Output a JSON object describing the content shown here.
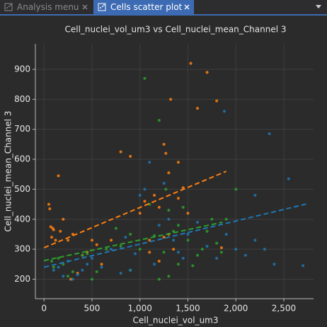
{
  "tabs": [
    {
      "label": "Analysis menu"
    },
    {
      "label": "Cells scatter plot"
    }
  ],
  "chart_data": {
    "type": "scatter",
    "title": "Cell_nuclei_vol_um3 vs Cell_nuclei_mean_Channel 3",
    "x_label": "Cell_nuclei_vol_um3",
    "y_label": "Cell_nuclei_mean_Channel 3",
    "xlim": [
      -90,
      2810
    ],
    "ylim": [
      135,
      985
    ],
    "xticks": [
      0,
      500,
      {
        "value": 1000,
        "label": "1,000"
      },
      {
        "value": 1500,
        "label": "1,500"
      },
      {
        "value": 2000,
        "label": "2,000"
      },
      {
        "value": 2500,
        "label": "2,500"
      }
    ],
    "yticks": [
      200,
      300,
      400,
      500,
      600,
      700,
      800,
      900
    ],
    "grid": true,
    "series": [
      {
        "color": "#ff7f0e",
        "x": [
          50,
          60,
          70,
          80,
          90,
          100,
          120,
          150,
          170,
          200,
          250,
          280,
          300,
          350,
          400,
          450,
          500,
          550,
          600,
          700,
          800,
          900,
          1000,
          1050,
          1100,
          1150,
          1200,
          1250,
          1270,
          1300,
          1320,
          1350,
          1400,
          1450,
          1500,
          1530,
          1600,
          1700,
          1800,
          1850,
          1200,
          1250,
          1300,
          1400,
          1100
        ],
        "y": [
          450,
          435,
          375,
          340,
          370,
          365,
          330,
          545,
          360,
          400,
          330,
          200,
          350,
          220,
          280,
          290,
          330,
          315,
          250,
          330,
          625,
          610,
          420,
          460,
          290,
          480,
          440,
          650,
          620,
          555,
          800,
          300,
          590,
          505,
          420,
          920,
          770,
          890,
          795,
          305,
          260,
          340,
          350,
          470,
          330
        ]
      },
      {
        "color": "#2ca02c",
        "x": [
          80,
          100,
          150,
          200,
          250,
          300,
          400,
          450,
          500,
          550,
          650,
          750,
          800,
          900,
          1000,
          1050,
          1100,
          1150,
          1200,
          1250,
          1270,
          1300,
          1350,
          1400,
          1450,
          1500,
          1550,
          1600,
          1650,
          1700,
          1750,
          1800,
          1850,
          1900,
          2000,
          1200,
          1300,
          900,
          1400
        ],
        "y": [
          260,
          240,
          270,
          250,
          210,
          225,
          280,
          285,
          200,
          225,
          300,
          370,
          310,
          350,
          300,
          870,
          450,
          345,
          730,
          290,
          500,
          430,
          360,
          380,
          440,
          330,
          245,
          280,
          300,
          360,
          400,
          320,
          290,
          400,
          500,
          200,
          210,
          230,
          250
        ]
      },
      {
        "color": "#1f77b4",
        "x": [
          100,
          150,
          200,
          250,
          300,
          350,
          400,
          450,
          500,
          600,
          700,
          800,
          850,
          900,
          950,
          1000,
          1050,
          1100,
          1150,
          1200,
          1250,
          1300,
          1350,
          1400,
          1450,
          1500,
          1600,
          1700,
          1800,
          1880,
          1900,
          2000,
          2100,
          2200,
          2300,
          2350,
          2400,
          2550,
          2700,
          2200
        ],
        "y": [
          230,
          240,
          210,
          260,
          200,
          215,
          230,
          250,
          270,
          240,
          300,
          220,
          340,
          230,
          285,
          480,
          500,
          590,
          250,
          380,
          520,
          400,
          330,
          290,
          270,
          350,
          390,
          310,
          270,
          760,
          350,
          300,
          280,
          330,
          300,
          685,
          250,
          535,
          245,
          480
        ]
      }
    ],
    "trend_lines": [
      {
        "color": "#ff7f0e",
        "x": [
          0,
          1900
        ],
        "y": [
          305,
          560
        ]
      },
      {
        "color": "#2ca02c",
        "x": [
          0,
          1860
        ],
        "y": [
          262,
          390
        ]
      },
      {
        "color": "#1f77b4",
        "x": [
          0,
          2750
        ],
        "y": [
          240,
          452
        ]
      }
    ]
  }
}
